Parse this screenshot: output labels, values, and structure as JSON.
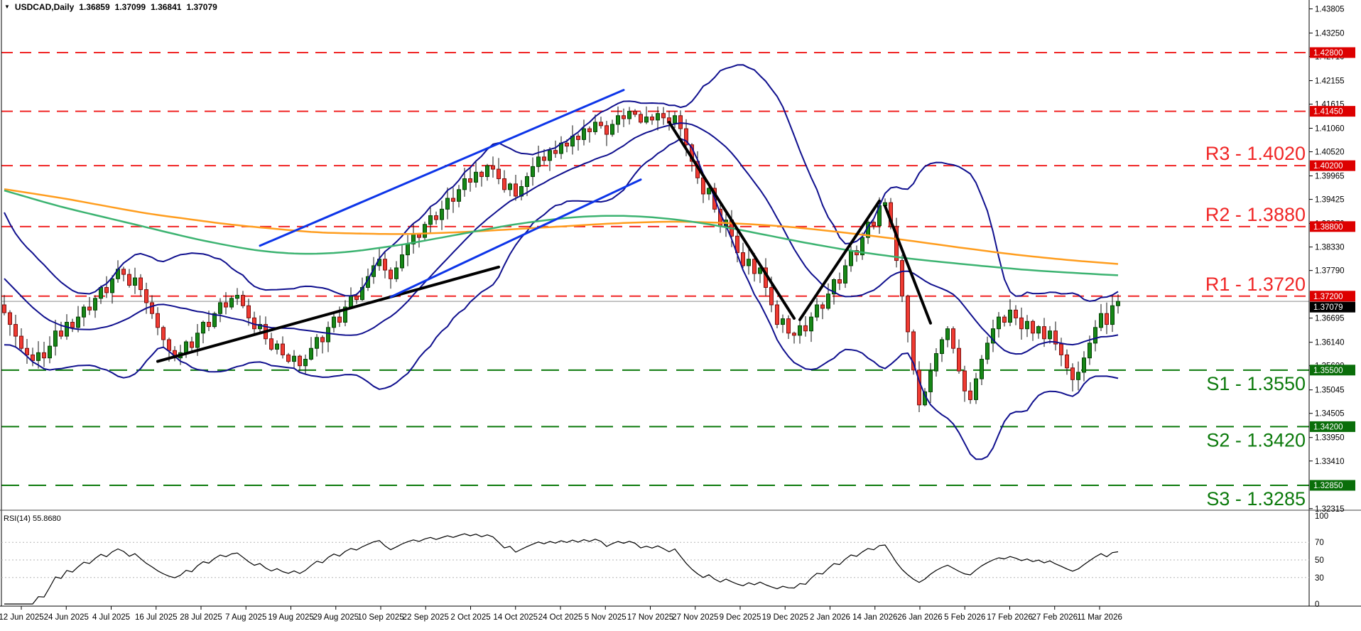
{
  "title": {
    "dropdown_icon": "▼",
    "symbol_period": "USDCAD,Daily",
    "open": "1.36859",
    "high": "1.37099",
    "low": "1.36841",
    "close": "1.37079"
  },
  "colors": {
    "background": "#ffffff",
    "border": "#000000",
    "candle_up_fill": "#178717",
    "candle_up_stroke": "#024002",
    "candle_down_fill": "#ef3b32",
    "candle_down_stroke": "#7c0e0e",
    "wick": "#111111",
    "bollinger": "#10108e",
    "ma_orange": "#ff9d1e",
    "ma_green": "#3cb371",
    "trend_blue": "#0d35e8",
    "trend_black": "#000000",
    "resistance": "#f02626",
    "resistance_chip": "#dd0000",
    "support": "#0c7a0c",
    "support_chip": "#0a6e0a",
    "price_line": "#8c8c8c",
    "price_chip": "#000000",
    "axis_text": "#000000",
    "rsi_line": "#000000",
    "rsi_level": "#b5b5b5"
  },
  "price_axis": {
    "top_price": 1.43813,
    "bottom_price": 1.32295,
    "ticks": [
      "1.43805",
      "1.43250",
      "1.42710",
      "1.42155",
      "1.41615",
      "1.41060",
      "1.40520",
      "1.39965",
      "1.39425",
      "1.38870",
      "1.38330",
      "1.37790",
      "1.36695",
      "1.36140",
      "1.35600",
      "1.35045",
      "1.34505",
      "1.33950",
      "1.33410",
      "1.32315"
    ]
  },
  "chart_data": {
    "type": "candlestick",
    "symbol": "USDCAD",
    "timeframe": "Daily",
    "candle_spacing": 8.0,
    "first_open": 1.37,
    "closes": [
      1.3682,
      1.3655,
      1.3628,
      1.36,
      1.3585,
      1.3572,
      1.359,
      1.3578,
      1.3605,
      1.364,
      1.3628,
      1.366,
      1.3648,
      1.3672,
      1.3695,
      1.3688,
      1.3715,
      1.374,
      1.3728,
      1.376,
      1.3782,
      1.377,
      1.3745,
      1.3762,
      1.3735,
      1.3705,
      1.368,
      1.3648,
      1.362,
      1.3595,
      1.3578,
      1.359,
      1.3615,
      1.3602,
      1.3635,
      1.366,
      1.365,
      1.368,
      1.3705,
      1.3695,
      1.3715,
      1.3722,
      1.3698,
      1.367,
      1.3645,
      1.3655,
      1.3622,
      1.3598,
      1.361,
      1.3585,
      1.357,
      1.3582,
      1.356,
      1.3575,
      1.36,
      1.3625,
      1.3615,
      1.3648,
      1.3672,
      1.366,
      1.3695,
      1.372,
      1.3712,
      1.374,
      1.3765,
      1.379,
      1.3805,
      1.378,
      1.376,
      1.3785,
      1.3815,
      1.384,
      1.3862,
      1.3855,
      1.3885,
      1.3905,
      1.3896,
      1.392,
      1.3945,
      1.3938,
      1.3965,
      1.399,
      1.3982,
      1.4005,
      1.3995,
      1.402,
      1.4012,
      1.399,
      1.3965,
      1.3978,
      1.395,
      1.3972,
      1.3995,
      1.4018,
      1.404,
      1.4032,
      1.4055,
      1.4048,
      1.4072,
      1.4065,
      1.4088,
      1.408,
      1.4105,
      1.4098,
      1.412,
      1.4112,
      1.4092,
      1.4115,
      1.4135,
      1.4128,
      1.4145,
      1.4138,
      1.412,
      1.4132,
      1.4125,
      1.414,
      1.413,
      1.4118,
      1.4135,
      1.4105,
      1.4068,
      1.403,
      1.3992,
      1.3955,
      1.3968,
      1.392,
      1.388,
      1.3895,
      1.3858,
      1.382,
      1.379,
      1.3805,
      1.3772,
      1.3785,
      1.374,
      1.37,
      1.3655,
      1.3668,
      1.3635,
      1.363,
      1.3652,
      1.364,
      1.3672,
      1.37,
      1.3692,
      1.3725,
      1.3758,
      1.375,
      1.379,
      1.3825,
      1.3815,
      1.3855,
      1.389,
      1.3882,
      1.3928,
      1.3935,
      1.388,
      1.3802,
      1.372,
      1.3638,
      1.355,
      1.347,
      1.35,
      1.3548,
      1.3588,
      1.362,
      1.3645,
      1.36,
      1.3548,
      1.3502,
      1.3482,
      1.353,
      1.3575,
      1.3612,
      1.3645,
      1.3672,
      1.366,
      1.3688,
      1.367,
      1.3645,
      1.3662,
      1.3635,
      1.365,
      1.3622,
      1.364,
      1.361,
      1.3585,
      1.3555,
      1.3528,
      1.3545,
      1.3578,
      1.3612,
      1.3648,
      1.368,
      1.3655,
      1.3698,
      1.3708
    ],
    "bollinger": {
      "period": 20,
      "deviation": 2,
      "prehistory_start": 1.395
    },
    "ma_orange_anchors": [
      [
        0,
        1.3966
      ],
      [
        10,
        1.3946
      ],
      [
        25,
        1.391
      ],
      [
        40,
        1.3884
      ],
      [
        55,
        1.3866
      ],
      [
        70,
        1.3862
      ],
      [
        82,
        1.3868
      ],
      [
        95,
        1.3878
      ],
      [
        108,
        1.3888
      ],
      [
        118,
        1.3892
      ],
      [
        128,
        1.3888
      ],
      [
        138,
        1.388
      ],
      [
        148,
        1.3866
      ],
      [
        158,
        1.385
      ],
      [
        168,
        1.3832
      ],
      [
        178,
        1.3815
      ],
      [
        188,
        1.3802
      ],
      [
        196,
        1.3794
      ]
    ],
    "ma_green_anchors": [
      [
        0,
        1.3963
      ],
      [
        10,
        1.3925
      ],
      [
        22,
        1.3888
      ],
      [
        34,
        1.385
      ],
      [
        44,
        1.3825
      ],
      [
        52,
        1.3816
      ],
      [
        60,
        1.382
      ],
      [
        70,
        1.3838
      ],
      [
        80,
        1.3862
      ],
      [
        90,
        1.3886
      ],
      [
        100,
        1.3902
      ],
      [
        108,
        1.3906
      ],
      [
        116,
        1.39
      ],
      [
        124,
        1.3886
      ],
      [
        132,
        1.3866
      ],
      [
        140,
        1.3845
      ],
      [
        150,
        1.3822
      ],
      [
        160,
        1.3805
      ],
      [
        170,
        1.3792
      ],
      [
        180,
        1.378
      ],
      [
        190,
        1.3772
      ],
      [
        196,
        1.3768
      ]
    ],
    "trendlines": [
      {
        "name": "uptrend-july",
        "color_key": "trend_black",
        "width": 4,
        "p1": [
          27,
          1.357
        ],
        "p2": [
          87,
          1.3787
        ]
      },
      {
        "name": "channel-upper-blue",
        "color_key": "trend_blue",
        "width": 3,
        "p1": [
          45,
          1.3836
        ],
        "p2": [
          109,
          1.4194
        ]
      },
      {
        "name": "channel-lower-blue",
        "color_key": "trend_blue",
        "width": 3,
        "p1": [
          68,
          1.3718
        ],
        "p2": [
          112,
          1.3988
        ]
      },
      {
        "name": "downtrend-november",
        "color_key": "trend_black",
        "width": 4,
        "p1": [
          117,
          1.412
        ],
        "p2": [
          139,
          1.3669
        ]
      },
      {
        "name": "uptrend-december",
        "color_key": "trend_black",
        "width": 4,
        "p1": [
          140,
          1.3666
        ],
        "p2": [
          154,
          1.3939
        ]
      },
      {
        "name": "downtrend-january",
        "color_key": "trend_black",
        "width": 4,
        "p1": [
          155,
          1.3927
        ],
        "p2": [
          163,
          1.3658
        ]
      }
    ],
    "levels": {
      "resistance": [
        {
          "value": 1.428,
          "chip": "1.42800",
          "label": ""
        },
        {
          "value": 1.4145,
          "chip": "1.41450",
          "label": ""
        },
        {
          "value": 1.402,
          "chip": "1.40200",
          "label": "R3 - 1.4020"
        },
        {
          "value": 1.388,
          "chip": "1.38800",
          "label": "R2 - 1.3880"
        },
        {
          "value": 1.372,
          "chip": "1.37200",
          "label": "R1 - 1.3720"
        }
      ],
      "support": [
        {
          "value": 1.355,
          "chip": "1.35500",
          "label": "S1 - 1.3550"
        },
        {
          "value": 1.342,
          "chip": "1.34200",
          "label": "S2 - 1.3420"
        },
        {
          "value": 1.3285,
          "chip": "1.32850",
          "label": "S3 - 1.3285"
        }
      ]
    },
    "current_price": {
      "value": 1.37079,
      "chip": "1.37079"
    },
    "rsi": {
      "label": "RSI(14) 55.8680",
      "period": 14,
      "value": 55.868,
      "axis_labels": [
        "100",
        "70",
        "50",
        "30",
        "0"
      ],
      "axis_values": [
        100,
        70,
        50,
        30,
        0
      ],
      "dotted_levels": [
        70,
        50,
        30
      ]
    },
    "x_ticks": [
      "12 Jun 2025",
      "24 Jun 2025",
      "4 Jul 2025",
      "16 Jul 2025",
      "28 Jul 2025",
      "7 Aug 2025",
      "19 Aug 2025",
      "29 Aug 2025",
      "10 Sep 2025",
      "22 Sep 2025",
      "2 Oct 2025",
      "14 Oct 2025",
      "24 Oct 2025",
      "5 Nov 2025",
      "17 Nov 2025",
      "27 Nov 2025",
      "9 Dec 2025",
      "19 Dec 2025",
      "2 Jan 2026",
      "14 Jan 2026",
      "26 Jan 2026",
      "5 Feb 2026",
      "17 Feb 2026",
      "27 Feb 2026",
      "11 Mar 2026"
    ]
  }
}
